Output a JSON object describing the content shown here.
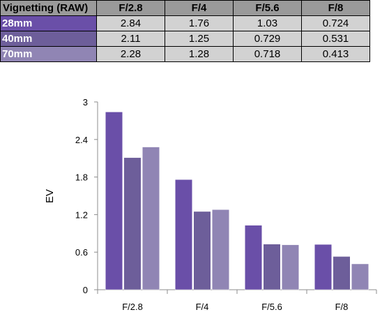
{
  "table": {
    "corner_label": "Vignetting (RAW)",
    "columns": [
      "F/2.8",
      "F/4",
      "F/5.6",
      "F/8"
    ],
    "rows": [
      {
        "label": "28mm",
        "color": "#6a4fa8",
        "values": [
          "2.84",
          "1.76",
          "1.03",
          "0.724"
        ]
      },
      {
        "label": "40mm",
        "color": "#6d5e9a",
        "values": [
          "2.11",
          "1.25",
          "0.729",
          "0.531"
        ]
      },
      {
        "label": "70mm",
        "color": "#9085b4",
        "values": [
          "2.28",
          "1.28",
          "0.718",
          "0.413"
        ]
      }
    ]
  },
  "chart_data": {
    "type": "bar",
    "title": "",
    "xlabel": "",
    "ylabel": "EV",
    "ylim": [
      0,
      3
    ],
    "yticks": [
      "0",
      "0.6",
      "1.2",
      "1.8",
      "2.4",
      "3"
    ],
    "categories": [
      "F/2.8",
      "F/4",
      "F/5.6",
      "F/8"
    ],
    "grid": false,
    "legend": "none",
    "series": [
      {
        "color": "#6a4fa8",
        "values": [
          2.84,
          1.76,
          1.03,
          0.724
        ]
      },
      {
        "color": "#6d5e9a",
        "values": [
          2.11,
          1.25,
          0.729,
          0.531
        ]
      },
      {
        "color": "#9085b4",
        "values": [
          2.28,
          1.28,
          0.718,
          0.413
        ]
      }
    ]
  }
}
